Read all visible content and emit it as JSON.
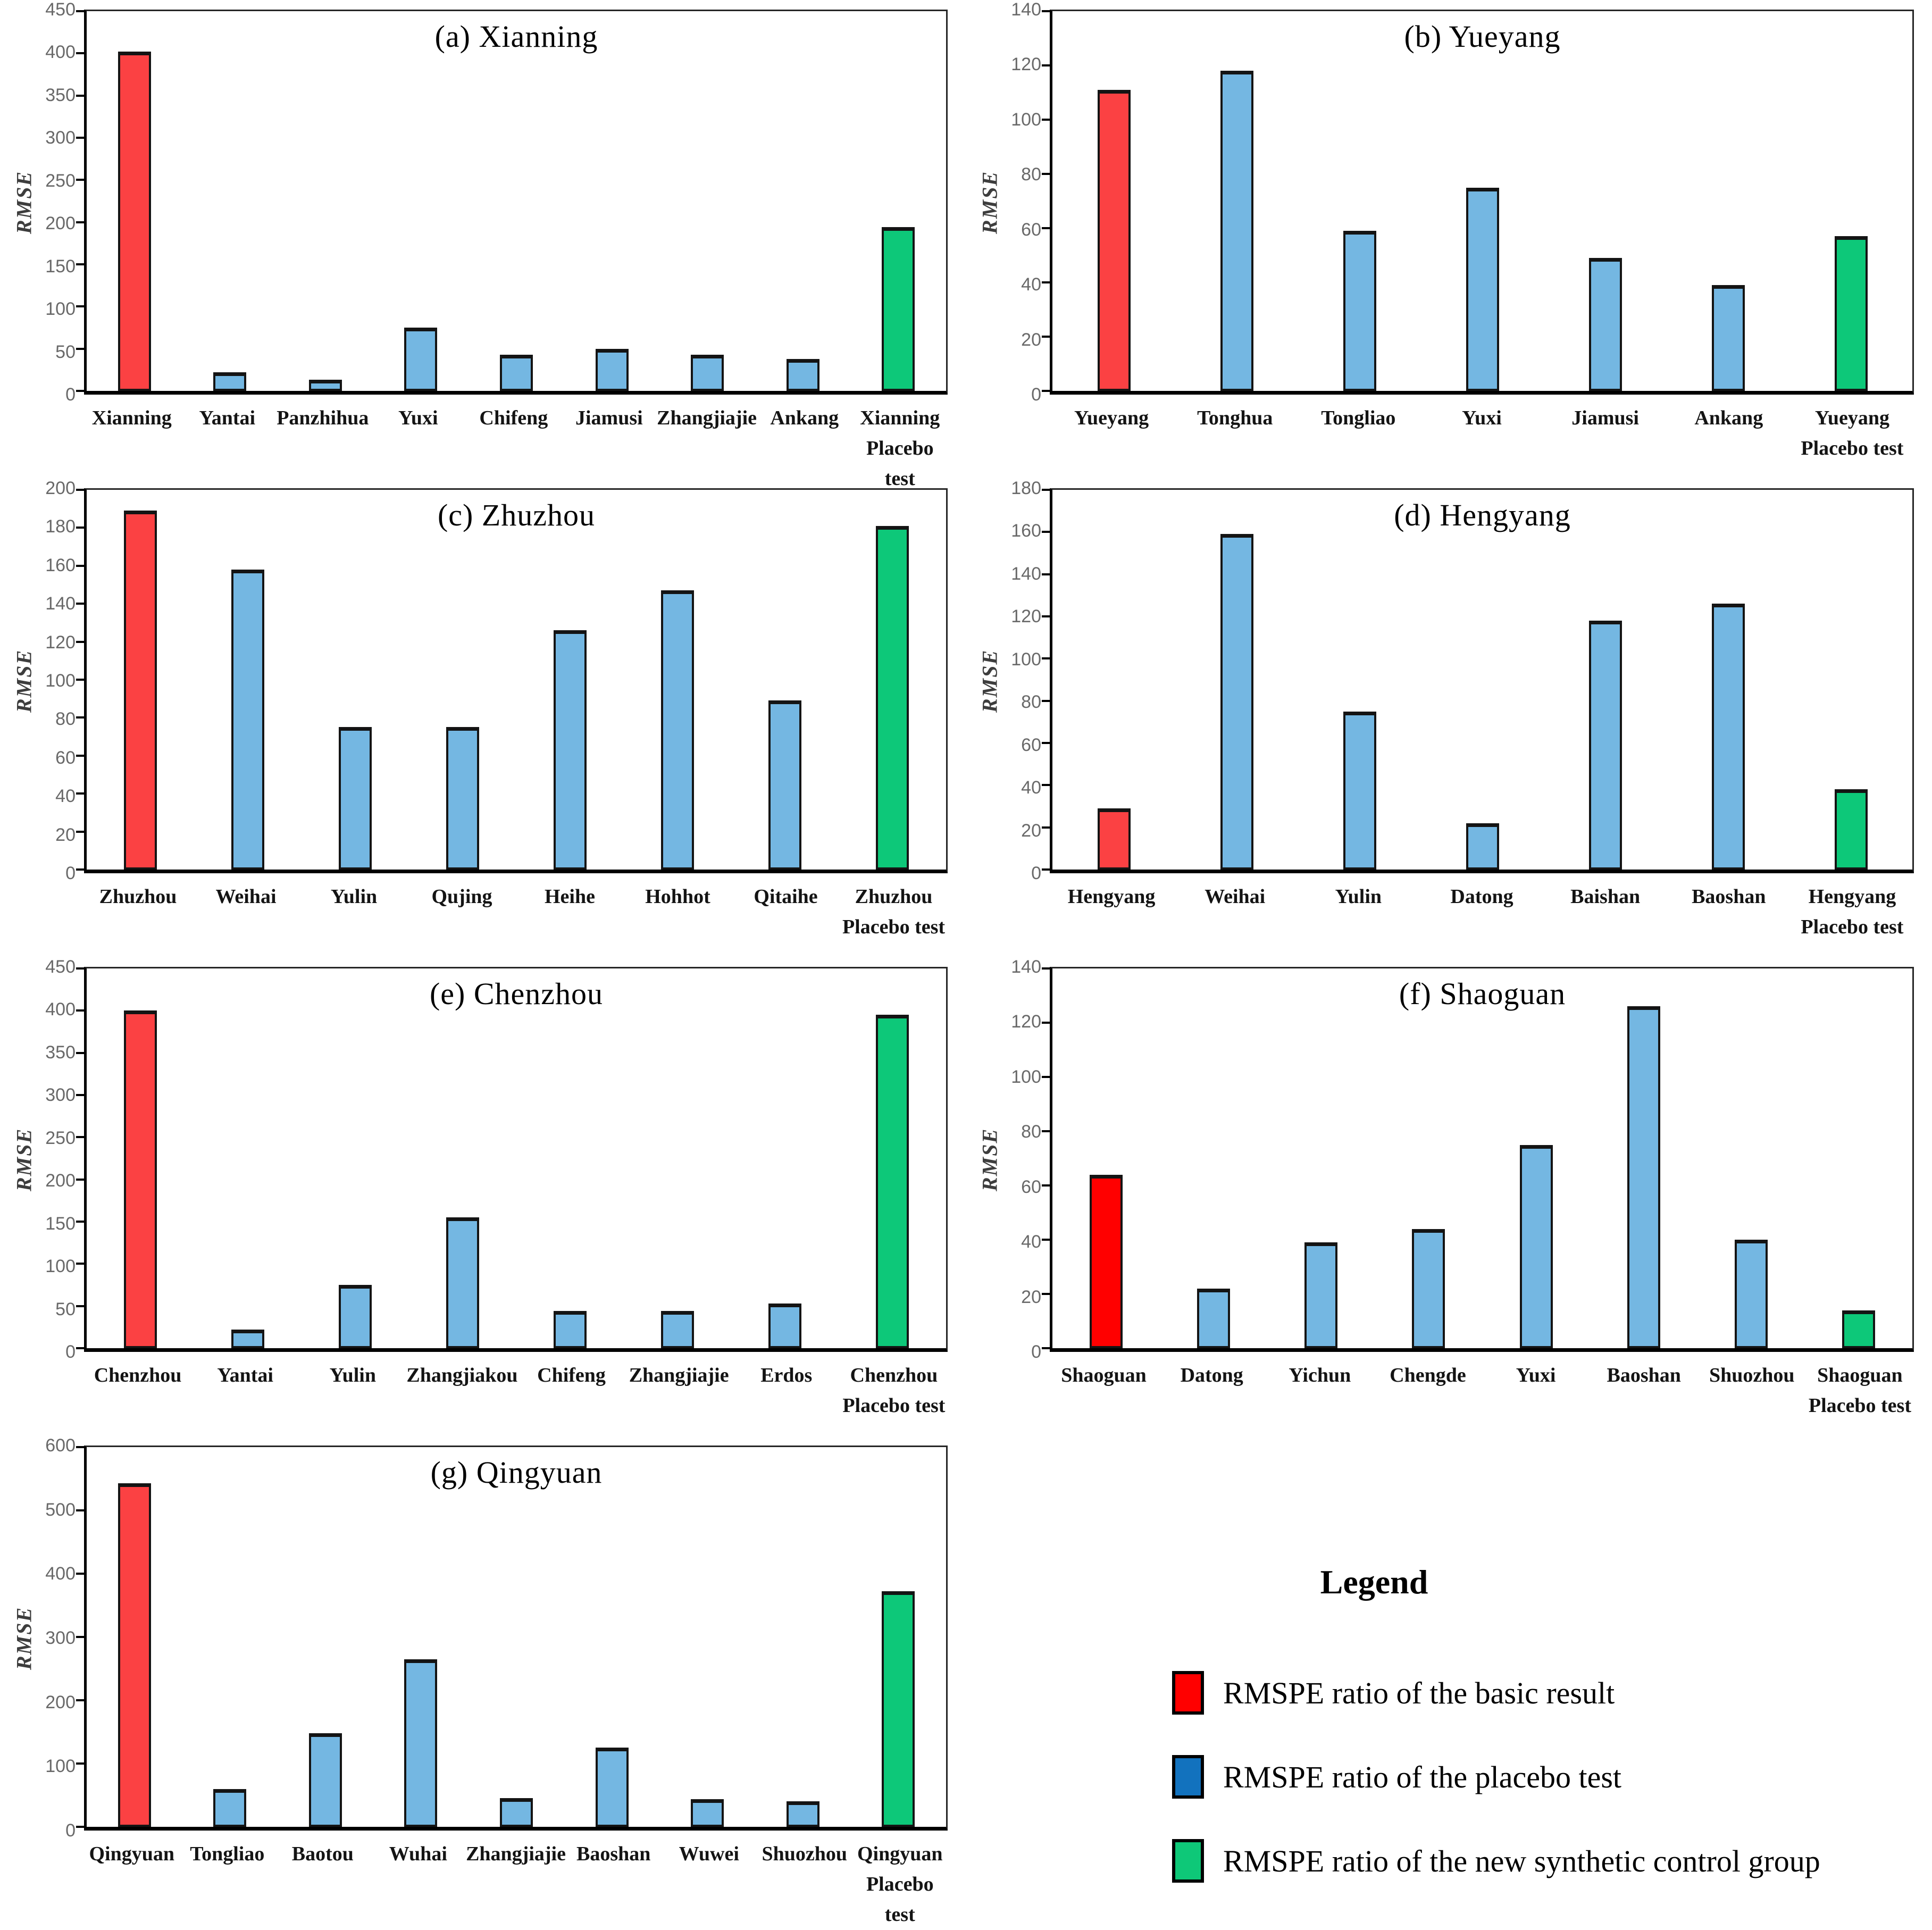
{
  "figure": {
    "ylabel": "RMSE",
    "bar_border_color": "#141414",
    "colors": {
      "basic_red_coral": "#FB4143",
      "basic_red_pure": "#FF0000",
      "placebo_blue": "#74B7E2",
      "new_green": "#0DC879"
    }
  },
  "legend": {
    "title": "Legend",
    "items": [
      {
        "label": "RMSPE ratio of the basic result",
        "color": "#FF0000",
        "swatch": "red-swatch"
      },
      {
        "label": "RMSPE ratio of the placebo test",
        "color": "#1272BE",
        "swatch": "blue-swatch"
      },
      {
        "label": "RMSPE ratio of the new synthetic control group",
        "color": "#0EC878",
        "swatch": "green-swatch"
      }
    ]
  },
  "chart_data": [
    {
      "type": "bar",
      "panel": "a",
      "title": "(a) Xianning",
      "ylabel": "RMSE",
      "ylim": [
        0,
        450
      ],
      "ytick": 50,
      "grid": false,
      "categories": [
        "Xianning",
        "Yantai",
        "Panzhihua",
        "Yuxi",
        "Chifeng",
        "Jiamusi",
        "Zhangjiajie",
        "Ankang",
        "Xianning\nPlacebo test"
      ],
      "values": [
        402,
        22,
        13,
        75,
        43,
        50,
        43,
        38,
        194
      ],
      "colors": [
        "#FB4143",
        "#74B7E2",
        "#74B7E2",
        "#74B7E2",
        "#74B7E2",
        "#74B7E2",
        "#74B7E2",
        "#74B7E2",
        "#0DC879"
      ]
    },
    {
      "type": "bar",
      "panel": "b",
      "title": "(b) Yueyang",
      "ylabel": "RMSE",
      "ylim": [
        0,
        140
      ],
      "ytick": 20,
      "grid": false,
      "categories": [
        "Yueyang",
        "Tonghua",
        "Tongliao",
        "Yuxi",
        "Jiamusi",
        "Ankang",
        "Yueyang\nPlacebo test"
      ],
      "values": [
        111,
        118,
        59,
        75,
        49,
        39,
        57
      ],
      "colors": [
        "#FB4143",
        "#74B7E2",
        "#74B7E2",
        "#74B7E2",
        "#74B7E2",
        "#74B7E2",
        "#0DC879"
      ]
    },
    {
      "type": "bar",
      "panel": "c",
      "title": "(c) Zhuzhou",
      "ylabel": "RMSE",
      "ylim": [
        0,
        200
      ],
      "ytick": 20,
      "grid": false,
      "categories": [
        "Zhuzhou",
        "Weihai",
        "Yulin",
        "Qujing",
        "Heihe",
        "Hohhot",
        "Qitaihe",
        "Zhuzhou\nPlacebo test"
      ],
      "values": [
        189,
        158,
        75,
        75,
        126,
        147,
        89,
        181
      ],
      "colors": [
        "#FB4143",
        "#74B7E2",
        "#74B7E2",
        "#74B7E2",
        "#74B7E2",
        "#74B7E2",
        "#74B7E2",
        "#0DC879"
      ]
    },
    {
      "type": "bar",
      "panel": "d",
      "title": "(d) Hengyang",
      "ylabel": "RMSE",
      "ylim": [
        0,
        180
      ],
      "ytick": 20,
      "grid": false,
      "categories": [
        "Hengyang",
        "Weihai",
        "Yulin",
        "Datong",
        "Baishan",
        "Baoshan",
        "Hengyang\nPlacebo test"
      ],
      "values": [
        29,
        159,
        75,
        22,
        118,
        126,
        38
      ],
      "colors": [
        "#FB4143",
        "#74B7E2",
        "#74B7E2",
        "#74B7E2",
        "#74B7E2",
        "#74B7E2",
        "#0DC879"
      ]
    },
    {
      "type": "bar",
      "panel": "e",
      "title": "(e) Chenzhou",
      "ylabel": "RMSE",
      "ylim": [
        0,
        450
      ],
      "ytick": 50,
      "grid": false,
      "categories": [
        "Chenzhou",
        "Yantai",
        "Yulin",
        "Zhangjiakou",
        "Chifeng",
        "Zhangjiajie",
        "Erdos",
        "Chenzhou\nPlacebo test"
      ],
      "values": [
        400,
        22,
        75,
        155,
        44,
        44,
        53,
        395
      ],
      "colors": [
        "#FB4143",
        "#74B7E2",
        "#74B7E2",
        "#74B7E2",
        "#74B7E2",
        "#74B7E2",
        "#74B7E2",
        "#0DC879"
      ]
    },
    {
      "type": "bar",
      "panel": "f",
      "title": "(f) Shaoguan",
      "ylabel": "RMSE",
      "ylim": [
        0,
        140
      ],
      "ytick": 20,
      "grid": false,
      "categories": [
        "Shaoguan",
        "Datong",
        "Yichun",
        "Chengde",
        "Yuxi",
        "Baoshan",
        "Shuozhou",
        "Shaoguan\nPlacebo test"
      ],
      "values": [
        64,
        22,
        39,
        44,
        75,
        126,
        40,
        14
      ],
      "colors": [
        "#FF0000",
        "#74B7E2",
        "#74B7E2",
        "#74B7E2",
        "#74B7E2",
        "#74B7E2",
        "#74B7E2",
        "#0DC879"
      ]
    },
    {
      "type": "bar",
      "panel": "g",
      "title": "(g) Qingyuan",
      "ylabel": "RMSE",
      "ylim": [
        0,
        600
      ],
      "ytick": 100,
      "grid": false,
      "categories": [
        "Qingyuan",
        "Tongliao",
        "Baotou",
        "Wuhai",
        "Zhangjiajie",
        "Baoshan",
        "Wuwei",
        "Shuozhou",
        "Qingyuan\nPlacebo test"
      ],
      "values": [
        543,
        60,
        148,
        265,
        45,
        125,
        44,
        40,
        372
      ],
      "colors": [
        "#FB4143",
        "#74B7E2",
        "#74B7E2",
        "#74B7E2",
        "#74B7E2",
        "#74B7E2",
        "#74B7E2",
        "#74B7E2",
        "#0DC879"
      ]
    }
  ]
}
